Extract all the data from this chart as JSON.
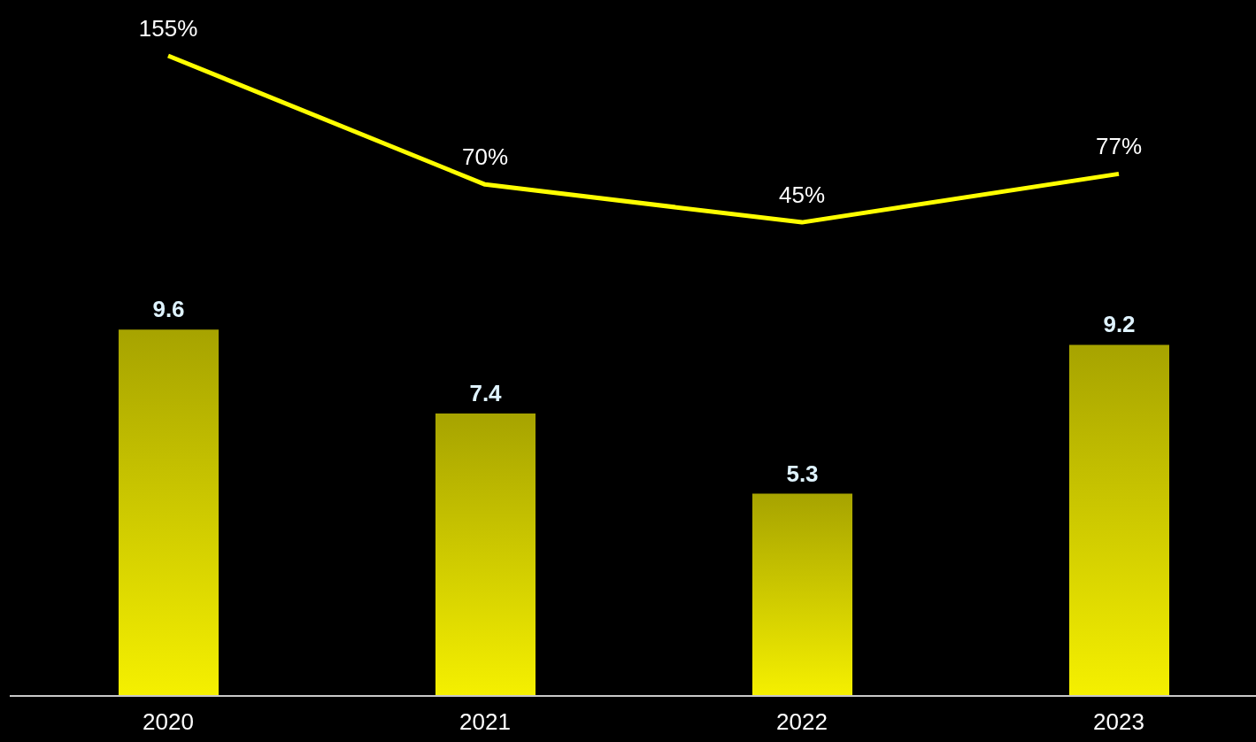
{
  "chart_data": [
    {
      "type": "line",
      "categories": [
        null,
        null,
        null,
        null
      ],
      "color": "#ffff00",
      "values": [
        155,
        70,
        45,
        77
      ],
      "value_labels": [
        "155%",
        "70%",
        "45%",
        "77%"
      ],
      "marker": "none",
      "line_style": "solid",
      "tick_labels": false
    },
    {
      "type": "bar",
      "categories": [
        "2020",
        "2021",
        "2022",
        "2023"
      ],
      "color": "#f5f000",
      "values": [
        9.6,
        7.4,
        5.3,
        9.2
      ],
      "value_labels": [
        "9.6",
        "7.4",
        "5.3",
        "9.2"
      ],
      "tick_labels": "x",
      "grid": false,
      "legend": false
    }
  ]
}
